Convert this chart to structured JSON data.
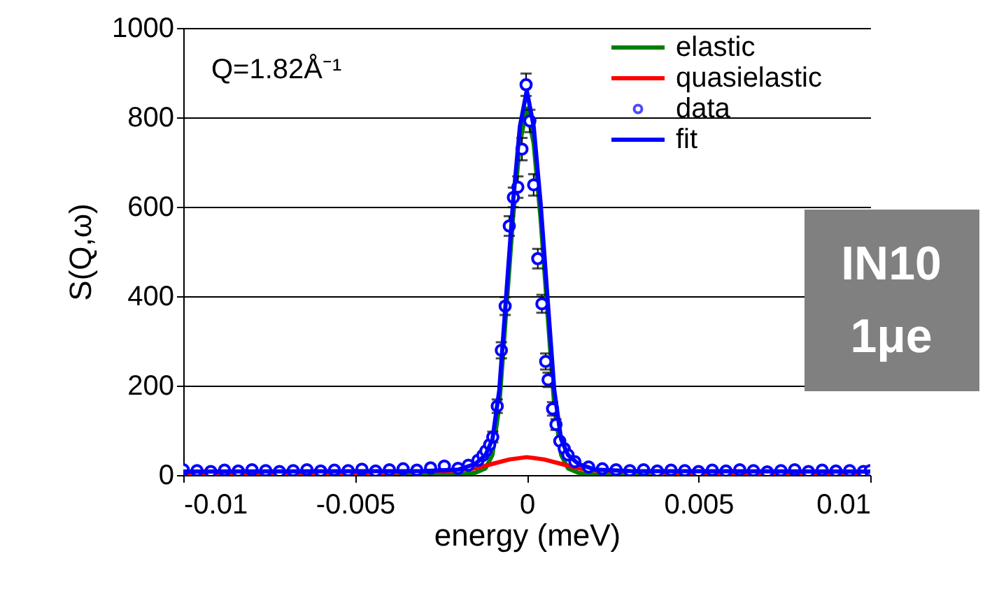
{
  "chart_data": {
    "type": "line",
    "xlabel": "energy (meV)",
    "ylabel": "S(Q,ω)",
    "xlim": [
      -0.01,
      0.01
    ],
    "xticks": [
      -0.01,
      -0.005,
      0,
      0.005,
      0.01
    ],
    "ylim": [
      0,
      1000
    ],
    "yticks": [
      0,
      200,
      400,
      600,
      800,
      1000
    ],
    "grid": "y",
    "legend": "top right",
    "line_style": "solid",
    "annotations": [
      "Q=1.82Å⁻¹",
      "IN10 1μe"
    ],
    "series": [
      {
        "name": "elastic",
        "color": "#008000",
        "x": [
          -0.01,
          -0.003,
          -0.002,
          -0.0015,
          -0.0012,
          -0.001,
          -0.0008,
          -0.0006,
          -0.0004,
          -0.0002,
          0,
          0.0002,
          0.0004,
          0.0006,
          0.0008,
          0.001,
          0.0012,
          0.0015,
          0.002,
          0.003,
          0.01
        ],
        "values": [
          0,
          0,
          1,
          5,
          15,
          45,
          155,
          365,
          575,
          742,
          820,
          742,
          575,
          365,
          155,
          45,
          15,
          5,
          1,
          0,
          0
        ]
      },
      {
        "name": "quasielastic",
        "color": "#ff0000",
        "x": [
          -0.01,
          -0.004,
          -0.002,
          -0.0015,
          -0.001,
          -0.0005,
          0,
          0.0005,
          0.001,
          0.0015,
          0.002,
          0.004,
          0.01
        ],
        "values": [
          3,
          5,
          10,
          15,
          25,
          35,
          40,
          35,
          25,
          15,
          10,
          5,
          3
        ]
      },
      {
        "name": "data",
        "color": "#0000ff",
        "type": "scatter",
        "marker": "circle",
        "x": [
          -0.01,
          -0.0096,
          -0.0092,
          -0.0088,
          -0.0084,
          -0.008,
          -0.0076,
          -0.0072,
          -0.0068,
          -0.0064,
          -0.006,
          -0.0056,
          -0.0052,
          -0.0048,
          -0.0044,
          -0.004,
          -0.0036,
          -0.0032,
          -0.0028,
          -0.0024,
          -0.002,
          -0.0017,
          -0.00142,
          -0.00128,
          -0.00119,
          -0.00108,
          -0.00099,
          -0.00086,
          -0.00074,
          -0.00063,
          -0.00051,
          -0.00039,
          -0.00026,
          -0.00014,
          -2e-05,
          9e-05,
          0.0002,
          0.00032,
          0.00044,
          0.00055,
          0.00062,
          0.00075,
          0.00085,
          0.00096,
          0.00109,
          0.0012,
          0.0014,
          0.0018,
          0.0022,
          0.0026,
          0.003,
          0.0034,
          0.0038,
          0.0042,
          0.0046,
          0.005,
          0.0054,
          0.0058,
          0.0062,
          0.0066,
          0.007,
          0.0074,
          0.0078,
          0.0082,
          0.0086,
          0.009,
          0.0094,
          0.0098,
          0.01
        ],
        "values": [
          12,
          10,
          8,
          11,
          9,
          12,
          10,
          8,
          10,
          12,
          9,
          11,
          10,
          13,
          9,
          12,
          14,
          11,
          16,
          20,
          15,
          22,
          33,
          44,
          54,
          68,
          85,
          154,
          279,
          378,
          557,
          621,
          644,
          729,
          873,
          792,
          649,
          484,
          383,
          254,
          213,
          148,
          113,
          76,
          59,
          45,
          30,
          18,
          14,
          12,
          10,
          12,
          9,
          11,
          10,
          8,
          11,
          9,
          12,
          10,
          7,
          10,
          12,
          8,
          11,
          9,
          10,
          8,
          10
        ],
        "errors": [
          null,
          null,
          null,
          null,
          null,
          null,
          null,
          null,
          null,
          null,
          null,
          null,
          null,
          null,
          null,
          null,
          null,
          null,
          null,
          null,
          null,
          null,
          null,
          null,
          null,
          null,
          12,
          15,
          18,
          20,
          22,
          22,
          24,
          25,
          25,
          25,
          24,
          22,
          20,
          18,
          16,
          15,
          12,
          null,
          null,
          null,
          null,
          null,
          null,
          null,
          null,
          null,
          null,
          null,
          null,
          null,
          null,
          null,
          null,
          null,
          null,
          null,
          null,
          null,
          null,
          null,
          null,
          null,
          null
        ]
      },
      {
        "name": "fit",
        "color": "#0000ff",
        "x": [
          -0.01,
          -0.003,
          -0.002,
          -0.0015,
          -0.0012,
          -0.001,
          -0.0008,
          -0.0006,
          -0.0004,
          -0.0002,
          0,
          0.0002,
          0.0004,
          0.0006,
          0.0008,
          0.001,
          0.0012,
          0.0015,
          0.002,
          0.003,
          0.01
        ],
        "values": [
          8,
          9,
          12,
          25,
          45,
          80,
          190,
          400,
          610,
          780,
          860,
          780,
          610,
          400,
          190,
          80,
          45,
          25,
          12,
          9,
          8
        ]
      }
    ]
  }
}
